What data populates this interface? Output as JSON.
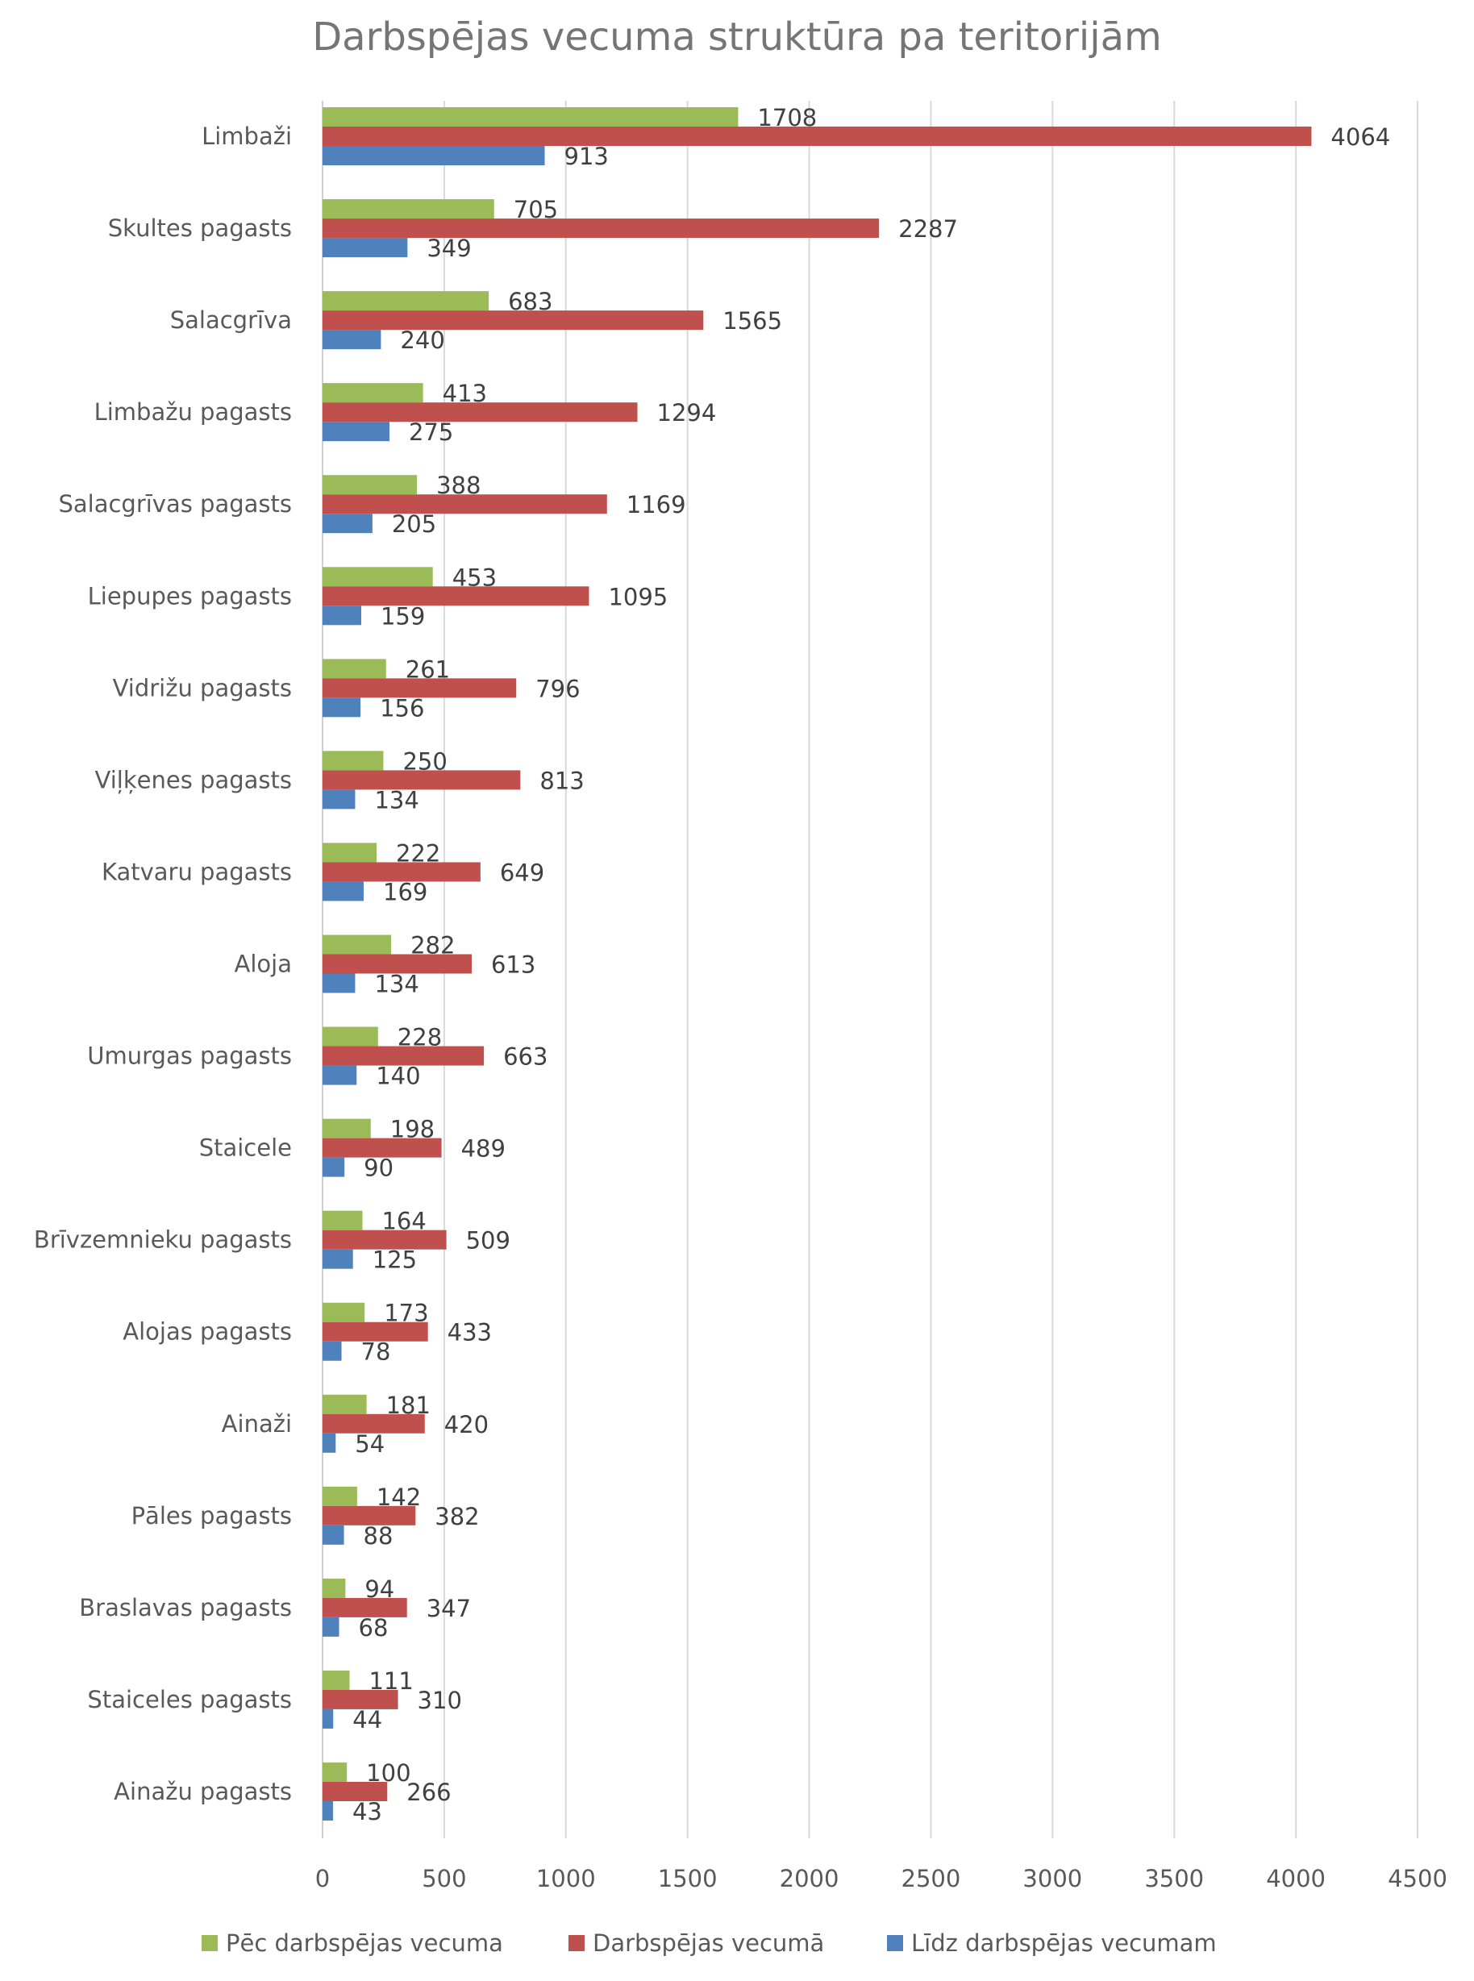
{
  "chart_data": {
    "type": "bar",
    "orientation": "horizontal",
    "title": "Darbspējas vecuma struktūra pa teritorijām",
    "xlabel": "",
    "ylabel": "",
    "xlim": [
      0,
      4500
    ],
    "xticks": [
      0,
      500,
      1000,
      1500,
      2000,
      2500,
      3000,
      3500,
      4000,
      4500
    ],
    "grid": true,
    "legend_position": "bottom",
    "categories": [
      "Limbaži",
      "Skultes pagasts",
      "Salacgrīva",
      "Limbažu pagasts",
      "Salacgrīvas pagasts",
      "Liepupes pagasts",
      "Vidrižu pagasts",
      "Viļķenes pagasts",
      "Katvaru pagasts",
      "Aloja",
      "Umurgas pagasts",
      "Staicele",
      "Brīvzemnieku pagasts",
      "Alojas pagasts",
      "Ainaži",
      "Pāles pagasts",
      "Braslavas pagasts",
      "Staiceles pagasts",
      "Ainažu pagasts"
    ],
    "series": [
      {
        "name": "Pēc darbspējas vecuma",
        "color": "#9BBB59",
        "values": [
          1708,
          705,
          683,
          413,
          388,
          453,
          261,
          250,
          222,
          282,
          228,
          198,
          164,
          173,
          181,
          142,
          94,
          111,
          100
        ]
      },
      {
        "name": "Darbspējas vecumā",
        "color": "#C0504D",
        "values": [
          4064,
          2287,
          1565,
          1294,
          1169,
          1095,
          796,
          813,
          649,
          613,
          663,
          489,
          509,
          433,
          420,
          382,
          347,
          310,
          266
        ]
      },
      {
        "name": "Līdz darbspējas vecumam",
        "color": "#4F81BD",
        "values": [
          913,
          349,
          240,
          275,
          205,
          159,
          156,
          134,
          169,
          134,
          140,
          90,
          125,
          78,
          54,
          88,
          68,
          44,
          43
        ]
      }
    ]
  }
}
